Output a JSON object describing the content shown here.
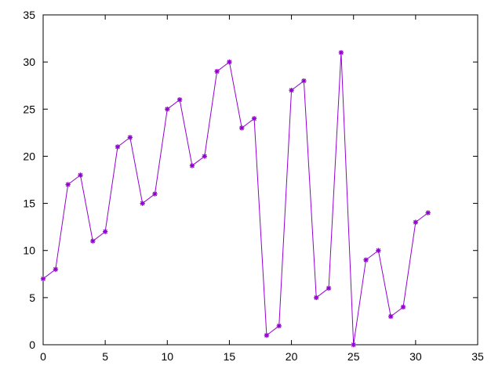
{
  "chart_data": {
    "type": "line",
    "title": "",
    "xlabel": "",
    "ylabel": "",
    "xlim": [
      0,
      35
    ],
    "ylim": [
      0,
      35
    ],
    "x_ticks": [
      0,
      5,
      10,
      15,
      20,
      25,
      30,
      35
    ],
    "y_ticks": [
      0,
      5,
      10,
      15,
      20,
      25,
      30,
      35
    ],
    "grid": false,
    "legend": "none",
    "series": [
      {
        "color": "#9400d3",
        "marker": "asterisk",
        "x": [
          0,
          1,
          2,
          3,
          4,
          5,
          6,
          7,
          8,
          9,
          10,
          11,
          12,
          13,
          14,
          15,
          16,
          17,
          18,
          19,
          20,
          21,
          22,
          23,
          24,
          25,
          26,
          27,
          28,
          29,
          30,
          31
        ],
        "y": [
          7,
          8,
          17,
          18,
          11,
          12,
          21,
          22,
          15,
          16,
          25,
          26,
          19,
          20,
          29,
          30,
          23,
          24,
          1,
          2,
          27,
          28,
          5,
          6,
          31,
          0,
          9,
          10,
          3,
          4,
          13,
          14
        ]
      }
    ]
  }
}
